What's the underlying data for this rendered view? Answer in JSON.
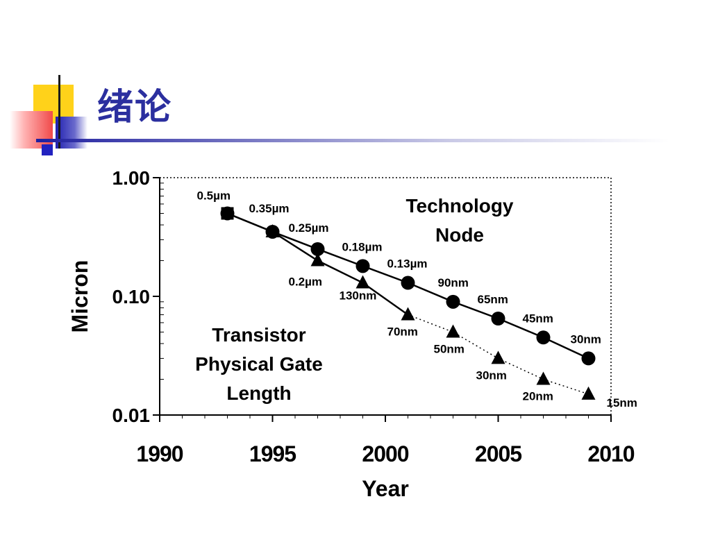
{
  "slide": {
    "title": "绪论"
  },
  "chart_data": {
    "type": "line",
    "title": "",
    "xlabel": "Year",
    "ylabel": "Micron",
    "xlim": [
      1990,
      2010
    ],
    "ylim": [
      0.01,
      1.0
    ],
    "yscale": "log",
    "x_ticks": [
      "1990",
      "1995",
      "2000",
      "2005",
      "2010"
    ],
    "y_ticks": [
      "1.00",
      "0.10",
      "0.01"
    ],
    "grid": false,
    "annotations": {
      "technology_node": [
        "Technology",
        "Node"
      ],
      "gate_length": [
        "Transistor",
        "Physical Gate",
        "Length"
      ]
    },
    "series": [
      {
        "marker": "circle",
        "line": "solid",
        "points": [
          {
            "x": 1993,
            "y": 0.5,
            "label": "0.5µm"
          },
          {
            "x": 1995,
            "y": 0.35,
            "label": "0.35µm"
          },
          {
            "x": 1997,
            "y": 0.25,
            "label": "0.25µm"
          },
          {
            "x": 1999,
            "y": 0.18,
            "label": "0.18µm"
          },
          {
            "x": 2001,
            "y": 0.13,
            "label": "0.13µm"
          },
          {
            "x": 2003,
            "y": 0.09,
            "label": "90nm"
          },
          {
            "x": 2005,
            "y": 0.065,
            "label": "65nm"
          },
          {
            "x": 2007,
            "y": 0.045,
            "label": "45nm"
          },
          {
            "x": 2009,
            "y": 0.03,
            "label": "30nm"
          }
        ]
      },
      {
        "marker": "triangle",
        "line": "solid-then-dotted",
        "solid_until_x": 2001,
        "points": [
          {
            "x": 1993,
            "y": 0.5,
            "label": ""
          },
          {
            "x": 1995,
            "y": 0.35,
            "label": ""
          },
          {
            "x": 1997,
            "y": 0.2,
            "label": "0.2µm"
          },
          {
            "x": 1999,
            "y": 0.13,
            "label": "130nm"
          },
          {
            "x": 2001,
            "y": 0.07,
            "label": "70nm"
          },
          {
            "x": 2003,
            "y": 0.05,
            "label": "50nm"
          },
          {
            "x": 2005,
            "y": 0.03,
            "label": "30nm"
          },
          {
            "x": 2007,
            "y": 0.02,
            "label": "20nm"
          },
          {
            "x": 2009,
            "y": 0.015,
            "label": "15nm"
          }
        ]
      }
    ]
  }
}
